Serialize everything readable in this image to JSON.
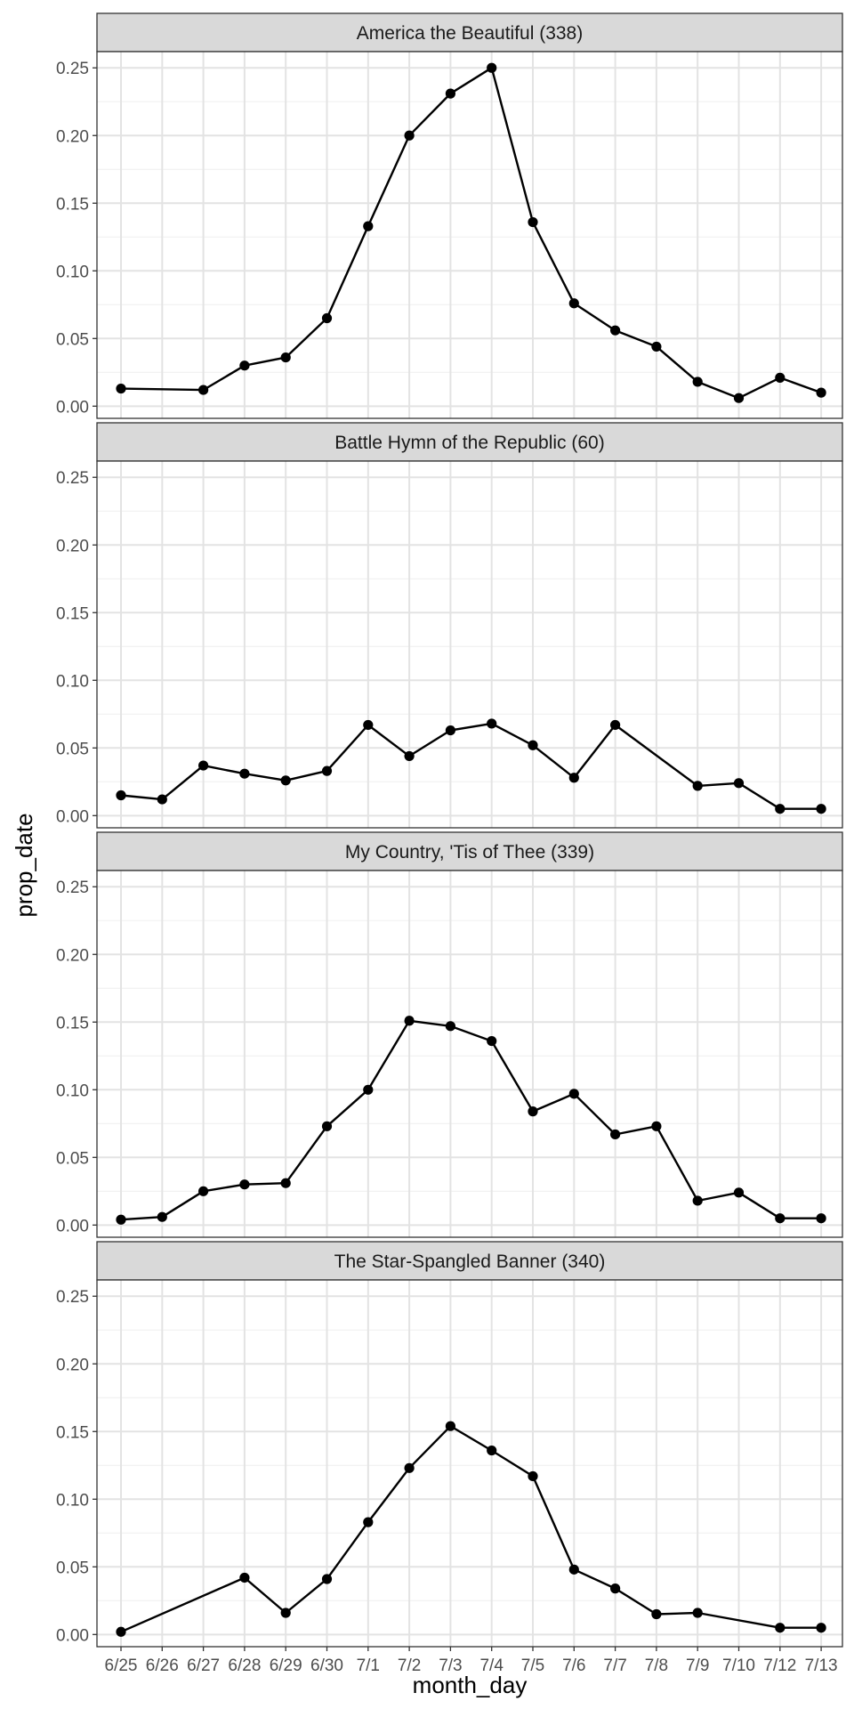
{
  "chart_data": {
    "type": "line",
    "xlabel": "month_day",
    "ylabel": "prop_date",
    "categories": [
      "6/25",
      "6/26",
      "6/27",
      "6/28",
      "6/29",
      "6/30",
      "7/1",
      "7/2",
      "7/3",
      "7/4",
      "7/5",
      "7/6",
      "7/7",
      "7/8",
      "7/9",
      "7/10",
      "7/12",
      "7/13"
    ],
    "y_ticks": [
      0.0,
      0.05,
      0.1,
      0.15,
      0.2,
      0.25
    ],
    "y_tick_labels": [
      "0.00",
      "0.05",
      "0.10",
      "0.15",
      "0.20",
      "0.25"
    ],
    "ylim": [
      -0.009,
      0.262
    ],
    "grid": true,
    "facets": [
      {
        "title": "America the Beautiful (338)",
        "points": [
          {
            "x": "6/25",
            "y": 0.013
          },
          {
            "x": "6/27",
            "y": 0.012
          },
          {
            "x": "6/28",
            "y": 0.03
          },
          {
            "x": "6/29",
            "y": 0.036
          },
          {
            "x": "6/30",
            "y": 0.065
          },
          {
            "x": "7/1",
            "y": 0.133
          },
          {
            "x": "7/2",
            "y": 0.2
          },
          {
            "x": "7/3",
            "y": 0.231
          },
          {
            "x": "7/4",
            "y": 0.25
          },
          {
            "x": "7/5",
            "y": 0.136
          },
          {
            "x": "7/6",
            "y": 0.076
          },
          {
            "x": "7/7",
            "y": 0.056
          },
          {
            "x": "7/8",
            "y": 0.044
          },
          {
            "x": "7/9",
            "y": 0.018
          },
          {
            "x": "7/10",
            "y": 0.006
          },
          {
            "x": "7/12",
            "y": 0.021
          },
          {
            "x": "7/13",
            "y": 0.01
          }
        ]
      },
      {
        "title": "Battle Hymn of the Republic (60)",
        "points": [
          {
            "x": "6/25",
            "y": 0.015
          },
          {
            "x": "6/26",
            "y": 0.012
          },
          {
            "x": "6/27",
            "y": 0.037
          },
          {
            "x": "6/28",
            "y": 0.031
          },
          {
            "x": "6/29",
            "y": 0.026
          },
          {
            "x": "6/30",
            "y": 0.033
          },
          {
            "x": "7/1",
            "y": 0.067
          },
          {
            "x": "7/2",
            "y": 0.044
          },
          {
            "x": "7/3",
            "y": 0.063
          },
          {
            "x": "7/4",
            "y": 0.068
          },
          {
            "x": "7/5",
            "y": 0.052
          },
          {
            "x": "7/6",
            "y": 0.028
          },
          {
            "x": "7/7",
            "y": 0.067
          },
          {
            "x": "7/9",
            "y": 0.022
          },
          {
            "x": "7/10",
            "y": 0.024
          },
          {
            "x": "7/12",
            "y": 0.005
          },
          {
            "x": "7/13",
            "y": 0.005
          }
        ]
      },
      {
        "title": "My Country, 'Tis of Thee (339)",
        "points": [
          {
            "x": "6/25",
            "y": 0.004
          },
          {
            "x": "6/26",
            "y": 0.006
          },
          {
            "x": "6/27",
            "y": 0.025
          },
          {
            "x": "6/28",
            "y": 0.03
          },
          {
            "x": "6/29",
            "y": 0.031
          },
          {
            "x": "6/30",
            "y": 0.073
          },
          {
            "x": "7/1",
            "y": 0.1
          },
          {
            "x": "7/2",
            "y": 0.151
          },
          {
            "x": "7/3",
            "y": 0.147
          },
          {
            "x": "7/4",
            "y": 0.136
          },
          {
            "x": "7/5",
            "y": 0.084
          },
          {
            "x": "7/6",
            "y": 0.097
          },
          {
            "x": "7/7",
            "y": 0.067
          },
          {
            "x": "7/8",
            "y": 0.073
          },
          {
            "x": "7/9",
            "y": 0.018
          },
          {
            "x": "7/10",
            "y": 0.024
          },
          {
            "x": "7/12",
            "y": 0.005
          },
          {
            "x": "7/13",
            "y": 0.005
          }
        ]
      },
      {
        "title": "The Star-Spangled Banner (340)",
        "points": [
          {
            "x": "6/25",
            "y": 0.002
          },
          {
            "x": "6/28",
            "y": 0.042
          },
          {
            "x": "6/29",
            "y": 0.016
          },
          {
            "x": "6/30",
            "y": 0.041
          },
          {
            "x": "7/1",
            "y": 0.083
          },
          {
            "x": "7/2",
            "y": 0.123
          },
          {
            "x": "7/3",
            "y": 0.154
          },
          {
            "x": "7/4",
            "y": 0.136
          },
          {
            "x": "7/5",
            "y": 0.117
          },
          {
            "x": "7/6",
            "y": 0.048
          },
          {
            "x": "7/7",
            "y": 0.034
          },
          {
            "x": "7/8",
            "y": 0.015
          },
          {
            "x": "7/9",
            "y": 0.016
          },
          {
            "x": "7/12",
            "y": 0.005
          },
          {
            "x": "7/13",
            "y": 0.005
          }
        ]
      }
    ]
  }
}
